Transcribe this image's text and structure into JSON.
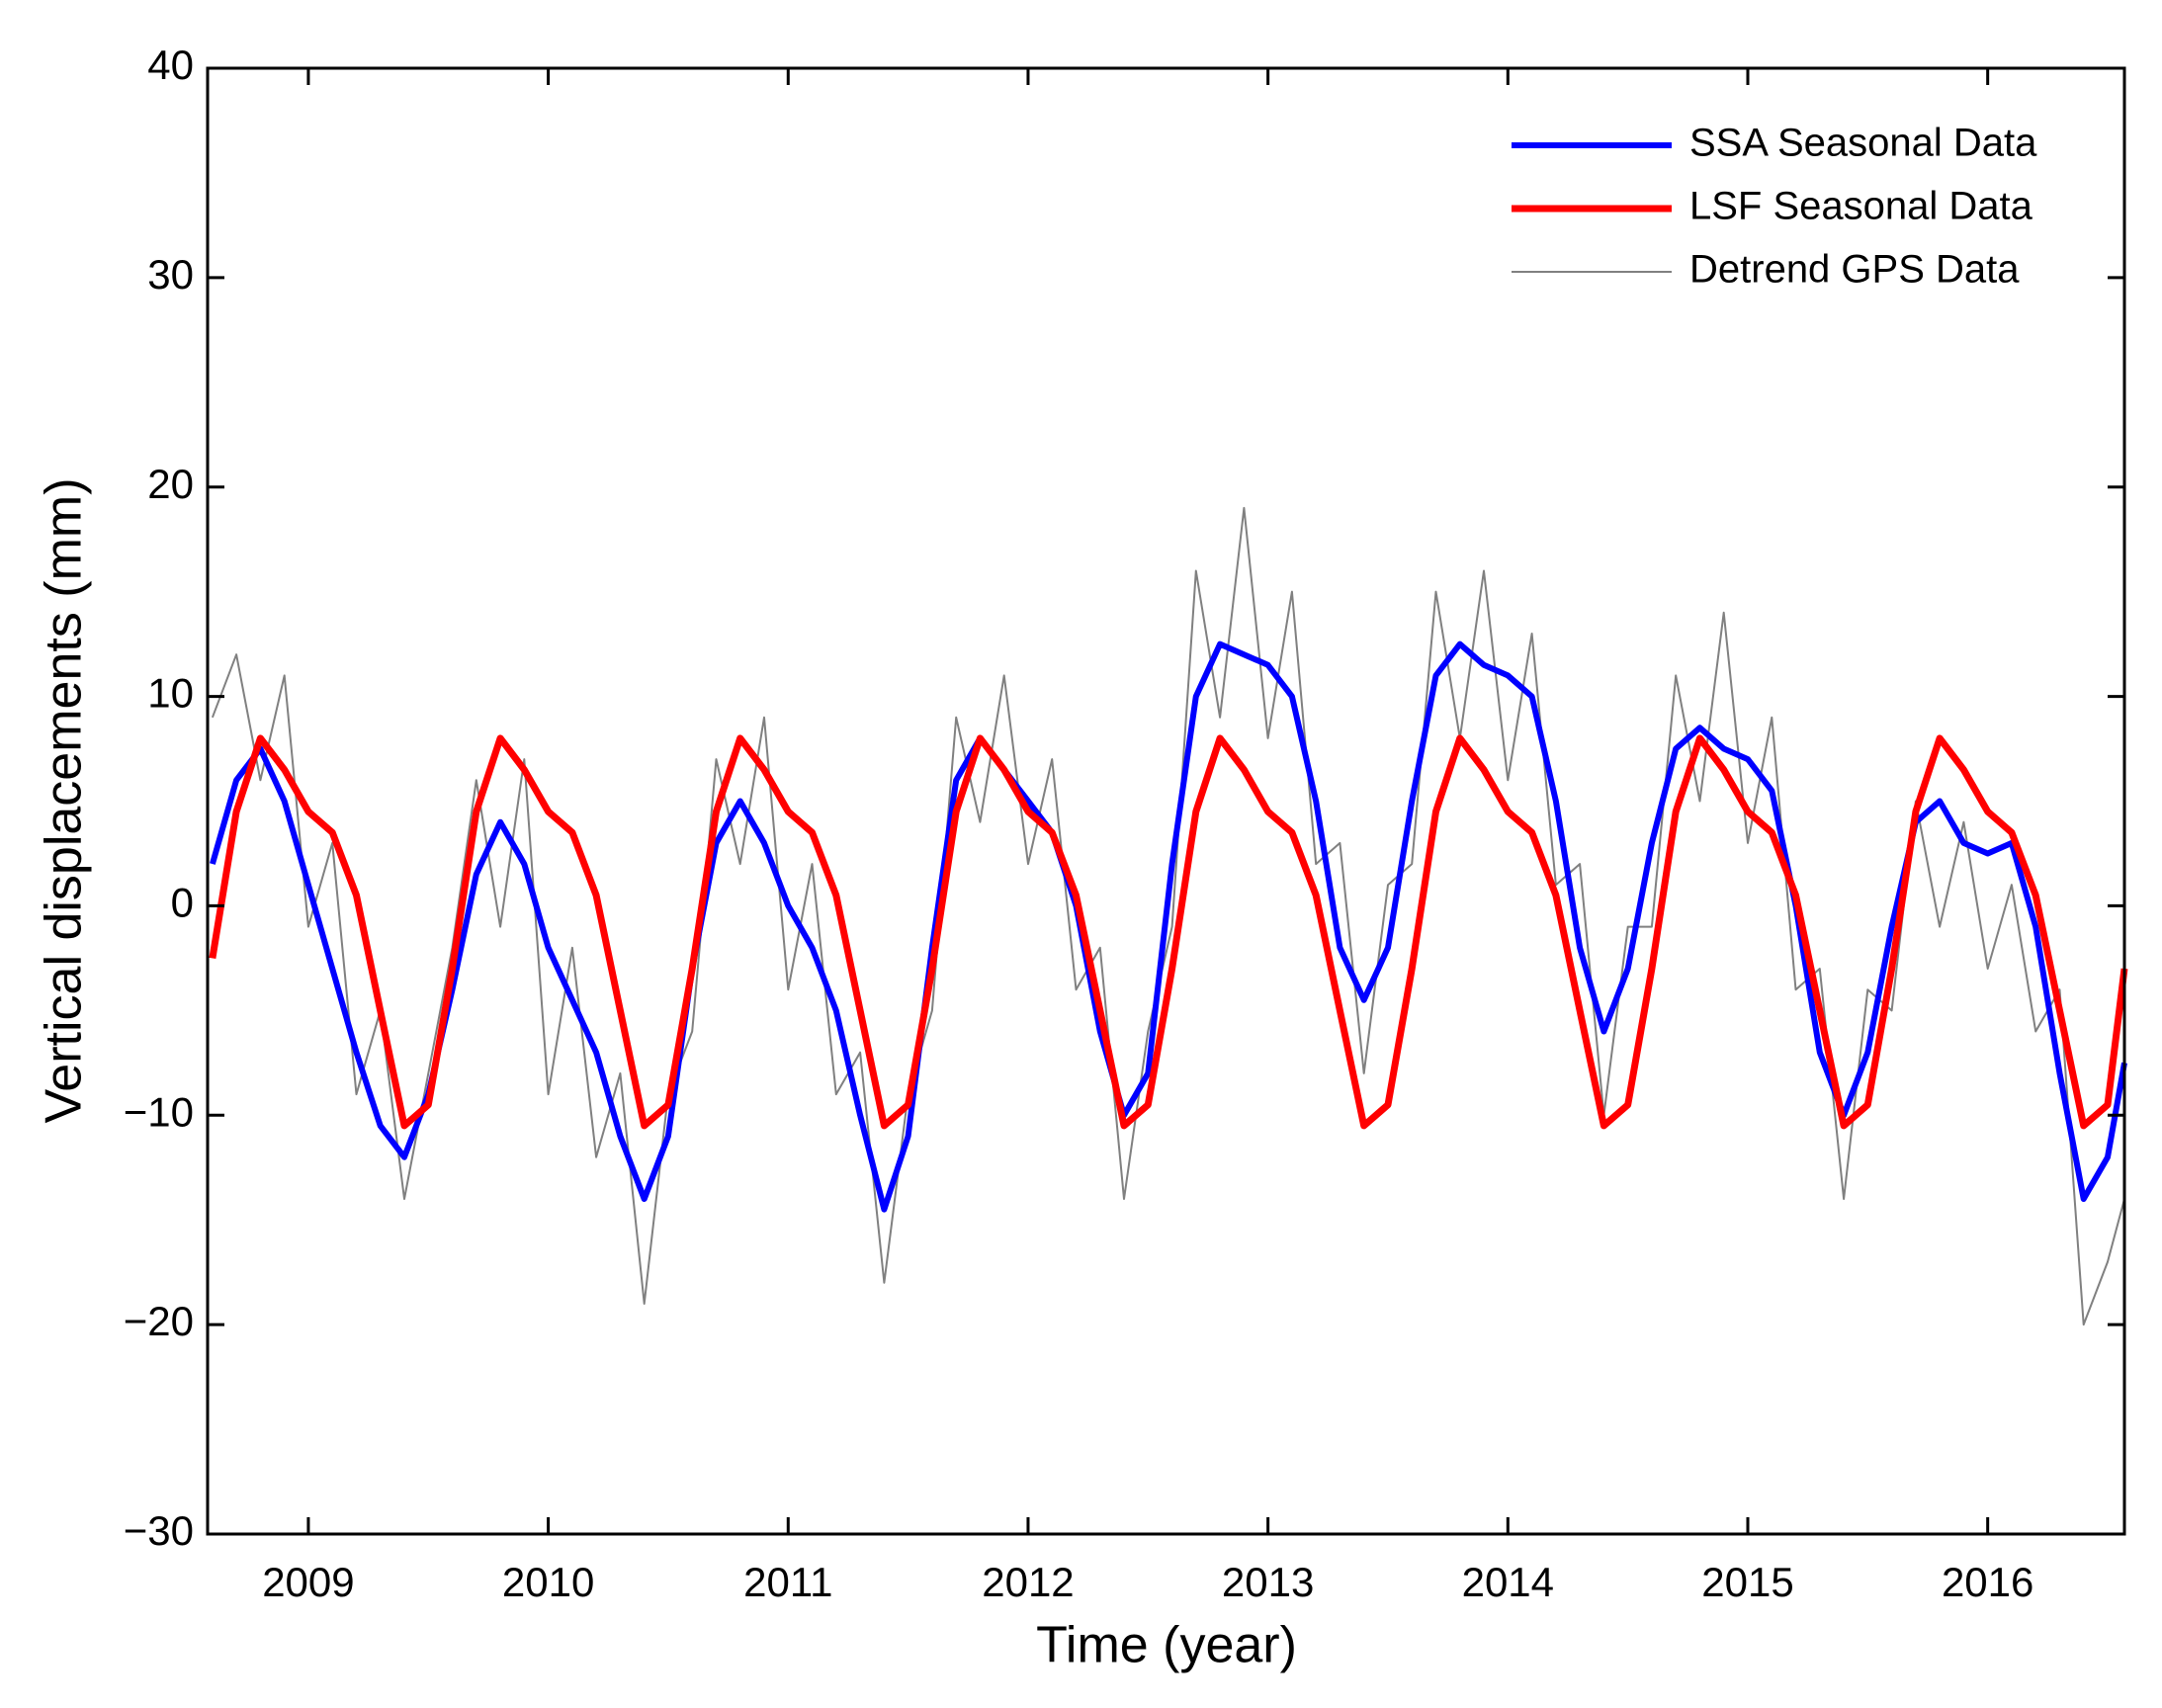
{
  "chart_data": {
    "type": "line",
    "xlabel": "Time (year)",
    "ylabel": "Vertical displacements (mm)",
    "legend": "upper right",
    "xlim": [
      2008.58,
      2016.57
    ],
    "xticks": [
      2009,
      2010,
      2011,
      2012,
      2013,
      2014,
      2015,
      2016
    ],
    "ylim": [
      -30,
      40
    ],
    "yticks": [
      {
        "value": -30,
        "label": "−30"
      },
      {
        "value": -20,
        "label": "−20"
      },
      {
        "value": -10,
        "label": "−10"
      },
      0,
      10,
      20,
      30,
      40
    ],
    "x": [
      2008.6,
      2008.7,
      2008.8,
      2008.9,
      2009.0,
      2009.1,
      2009.2,
      2009.3,
      2009.4,
      2009.5,
      2009.6,
      2009.7,
      2009.8,
      2009.9,
      2010.0,
      2010.1,
      2010.2,
      2010.3,
      2010.4,
      2010.5,
      2010.6,
      2010.7,
      2010.8,
      2010.9,
      2011.0,
      2011.1,
      2011.2,
      2011.3,
      2011.4,
      2011.5,
      2011.6,
      2011.7,
      2011.8,
      2011.9,
      2012.0,
      2012.1,
      2012.2,
      2012.3,
      2012.4,
      2012.5,
      2012.6,
      2012.7,
      2012.8,
      2012.9,
      2013.0,
      2013.1,
      2013.2,
      2013.3,
      2013.4,
      2013.5,
      2013.6,
      2013.7,
      2013.8,
      2013.9,
      2014.0,
      2014.1,
      2014.2,
      2014.3,
      2014.4,
      2014.5,
      2014.6,
      2014.7,
      2014.8,
      2014.9,
      2015.0,
      2015.1,
      2015.2,
      2015.3,
      2015.4,
      2015.5,
      2015.6,
      2015.7,
      2015.8,
      2015.9,
      2016.0,
      2016.1,
      2016.2,
      2016.3,
      2016.4,
      2016.5,
      2016.57
    ],
    "series": [
      {
        "name": "Detrend GPS Data",
        "color": "#808080",
        "width": 2,
        "values": [
          9,
          12,
          6,
          11,
          -1,
          3,
          -9,
          -5,
          -14,
          -8,
          -2,
          6,
          -1,
          7,
          -9,
          -2,
          -12,
          -8,
          -19,
          -9,
          -6,
          7,
          2,
          9,
          -4,
          2,
          -9,
          -7,
          -18,
          -9,
          -5,
          9,
          4,
          11,
          2,
          7,
          -4,
          -2,
          -14,
          -6,
          -1,
          16,
          9,
          19,
          8,
          15,
          2,
          3,
          -8,
          1,
          2,
          15,
          8,
          16,
          6,
          13,
          1,
          2,
          -10,
          -1,
          -1,
          11,
          5,
          14,
          3,
          9,
          -4,
          -3,
          -14,
          -4,
          -5,
          5,
          -1,
          4,
          -3,
          1,
          -6,
          -4,
          -20,
          -17,
          -14
        ]
      },
      {
        "name": "SSA Seasonal Data",
        "color": "#0000ff",
        "width": 6,
        "values": [
          2,
          6,
          7.5,
          5,
          1,
          -3,
          -7,
          -10.5,
          -12,
          -9,
          -4,
          1.5,
          4,
          2,
          -2,
          -4.5,
          -7,
          -11,
          -14,
          -11,
          -3,
          3,
          5,
          3,
          0,
          -2,
          -5,
          -10,
          -14.5,
          -11,
          -2,
          6,
          8,
          6.5,
          5,
          3.5,
          0,
          -6,
          -10,
          -8,
          2,
          10,
          12.5,
          12,
          11.5,
          10,
          5,
          -2,
          -4.5,
          -2,
          5,
          11,
          12.5,
          11.5,
          11,
          10,
          5,
          -2,
          -6,
          -3,
          3,
          7.5,
          8.5,
          7.5,
          7,
          5.5,
          0,
          -7,
          -10,
          -7,
          -1,
          4,
          5,
          3,
          2.5,
          3,
          -1,
          -8,
          -14,
          -12,
          -7.5
        ]
      },
      {
        "name": "LSF Seasonal Data",
        "color": "#ff0000",
        "width": 7,
        "values": [
          -2.5,
          4.5,
          8,
          6.5,
          4.5,
          3.5,
          0.5,
          -5,
          -10.5,
          -9.5,
          -3,
          4.5,
          8,
          6.5,
          4.5,
          3.5,
          0.5,
          -5,
          -10.5,
          -9.5,
          -3,
          4.5,
          8,
          6.5,
          4.5,
          3.5,
          0.5,
          -5,
          -10.5,
          -9.5,
          -3,
          4.5,
          8,
          6.5,
          4.5,
          3.5,
          0.5,
          -5,
          -10.5,
          -9.5,
          -3,
          4.5,
          8,
          6.5,
          4.5,
          3.5,
          0.5,
          -5,
          -10.5,
          -9.5,
          -3,
          4.5,
          8,
          6.5,
          4.5,
          3.5,
          0.5,
          -5,
          -10.5,
          -9.5,
          -3,
          4.5,
          8,
          6.5,
          4.5,
          3.5,
          0.5,
          -5,
          -10.5,
          -9.5,
          -3,
          4.5,
          8,
          6.5,
          4.5,
          3.5,
          0.5,
          -5,
          -10.5,
          -9.5,
          -3
        ]
      }
    ],
    "legend_order": [
      1,
      2,
      0
    ]
  }
}
